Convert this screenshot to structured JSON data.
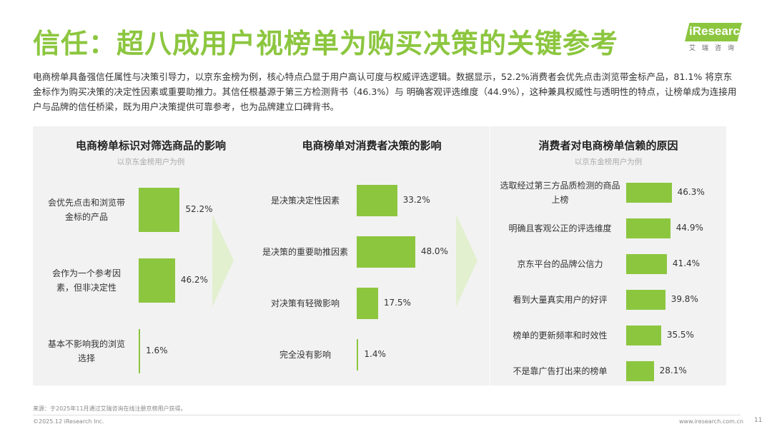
{
  "header": {
    "title": "信任：超八成用户视榜单为购买决策的关键参考",
    "logo_text": "iResearch",
    "logo_sub": "艾瑞咨询"
  },
  "intro": "电商榜单具备强信任属性与决策引导力，以京东金榜为例，核心特点凸显于用户高认可度与权威评选逻辑。数据显示，52.2%消费者会优先点击浏览带金标产品，81.1% 将京东金标作为购买决策的决定性因素或重要助推力。其信任根基源于第三方检测背书（46.3%）与 明确客观评选维度（44.9%），这种兼具权威性与透明性的特点，让榜单成为连接用户与品牌的信任桥梁，既为用户决策提供可靠参考，也为品牌建立口碑背书。",
  "chart_data": [
    {
      "type": "bar",
      "orientation": "horizontal",
      "title": "电商榜单标识对筛选商品的影响",
      "subtitle": "以京东金榜用户为例",
      "categories": [
        "会优先点击和浏览带金标的产品",
        "会作为一个参考因素，但非决定性",
        "基本不影响我的浏览选择"
      ],
      "category_lines": [
        [
          "会优先点击和浏览带",
          "金标的产品"
        ],
        [
          "会作为一个参考因",
          "素，但非决定性"
        ],
        [
          "基本不影响我的浏览",
          "选择"
        ]
      ],
      "values": [
        52.2,
        46.2,
        1.6
      ],
      "labels": [
        "52.2%",
        "46.2%",
        "1.6%"
      ],
      "unit": "%",
      "color": "#8cc63f"
    },
    {
      "type": "bar",
      "orientation": "horizontal",
      "title": "电商榜单对消费者决策的影响",
      "subtitle": "",
      "categories": [
        "是决策决定性因素",
        "是决策的重要助推因素",
        "对决策有轻微影响",
        "完全没有影响"
      ],
      "category_lines": [
        [
          "是决策决定性因素"
        ],
        [
          "是决策的重要助推因素"
        ],
        [
          "对决策有轻微影响"
        ],
        [
          "完全没有影响"
        ]
      ],
      "values": [
        33.2,
        48.0,
        17.5,
        1.4
      ],
      "labels": [
        "33.2%",
        "48.0%",
        "17.5%",
        "1.4%"
      ],
      "unit": "%",
      "color": "#8cc63f"
    },
    {
      "type": "bar",
      "orientation": "horizontal",
      "title": "消费者对电商榜单信赖的原因",
      "subtitle": "以京东金榜用户为例",
      "categories": [
        "选取经过第三方品质检测的商品上榜",
        "明确且客观公正的评选维度",
        "京东平台的品牌公信力",
        "看到大量真实用户的好评",
        "榜单的更新频率和时效性",
        "不是靠广告打出来的榜单"
      ],
      "category_lines": [
        [
          "选取经过第三方品质检测的商品",
          "上榜"
        ],
        [
          "明确且客观公正的评选维度"
        ],
        [
          "京东平台的品牌公信力"
        ],
        [
          "看到大量真实用户的好评"
        ],
        [
          "榜单的更新频率和时效性"
        ],
        [
          "不是靠广告打出来的榜单"
        ]
      ],
      "values": [
        46.3,
        44.9,
        41.4,
        39.8,
        35.5,
        28.1
      ],
      "labels": [
        "46.3%",
        "44.9%",
        "41.4%",
        "39.8%",
        "35.5%",
        "28.1%"
      ],
      "unit": "%",
      "color": "#8cc63f"
    }
  ],
  "footer": {
    "source": "来源：于2025年11月通过艾瑞咨询在线注册京榜用户获得。",
    "copyright": "©2025.12 iResearch Inc.",
    "url": "www.iresearch.com.cn",
    "page": "11"
  }
}
